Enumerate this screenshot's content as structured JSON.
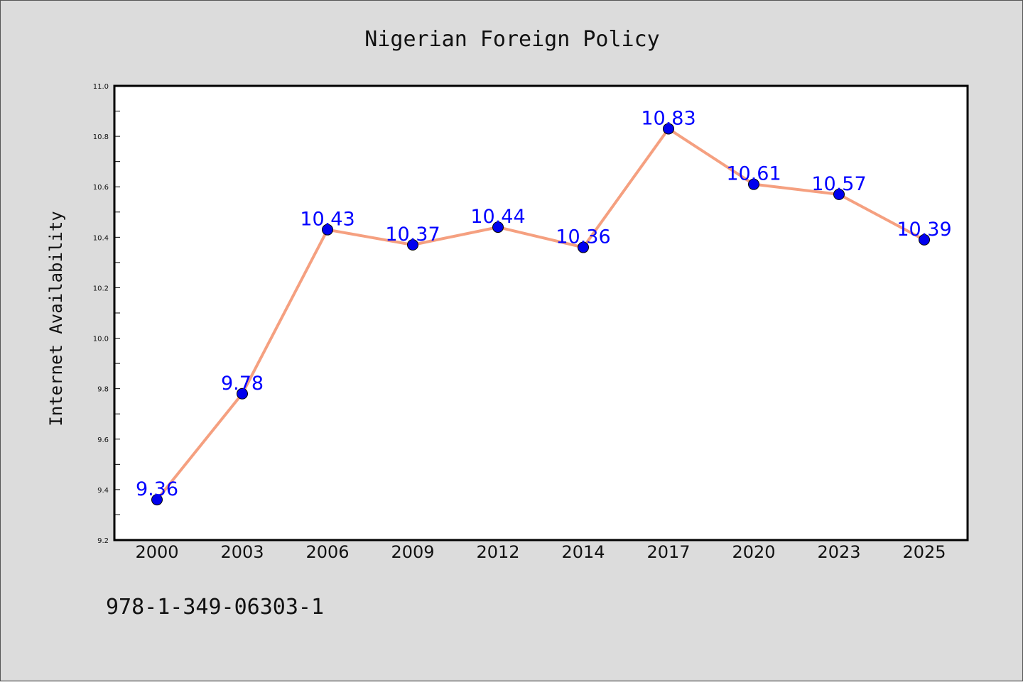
{
  "chart_data": {
    "type": "line",
    "title": "Nigerian Foreign Policy",
    "xlabel": "",
    "ylabel": "Internet Availability",
    "categories": [
      "2000",
      "2003",
      "2006",
      "2009",
      "2012",
      "2014",
      "2017",
      "2020",
      "2023",
      "2025"
    ],
    "series": [
      {
        "values": [
          9.36,
          9.78,
          10.43,
          10.37,
          10.44,
          10.36,
          10.83,
          10.61,
          10.57,
          10.39
        ],
        "labels": [
          "9.36",
          "9.78",
          "10.43",
          "10.37",
          "10.44",
          "10.36",
          "10.83",
          "10.61",
          "10.57",
          "10.39"
        ],
        "line_color": "#f5a080",
        "marker_color": "#0000ee"
      }
    ],
    "ylim": [
      9.2,
      11.0
    ],
    "yticks": [
      "9.2",
      "9.4",
      "9.6",
      "9.8",
      "10.0",
      "10.2",
      "10.4",
      "10.6",
      "10.8",
      "11.0"
    ],
    "grid": false,
    "legend": "none"
  },
  "footer_text": "978-1-349-06303-1",
  "colors": {
    "background": "#dcdcdc",
    "plot_background": "#ffffff",
    "data_label": "#0000ff"
  }
}
